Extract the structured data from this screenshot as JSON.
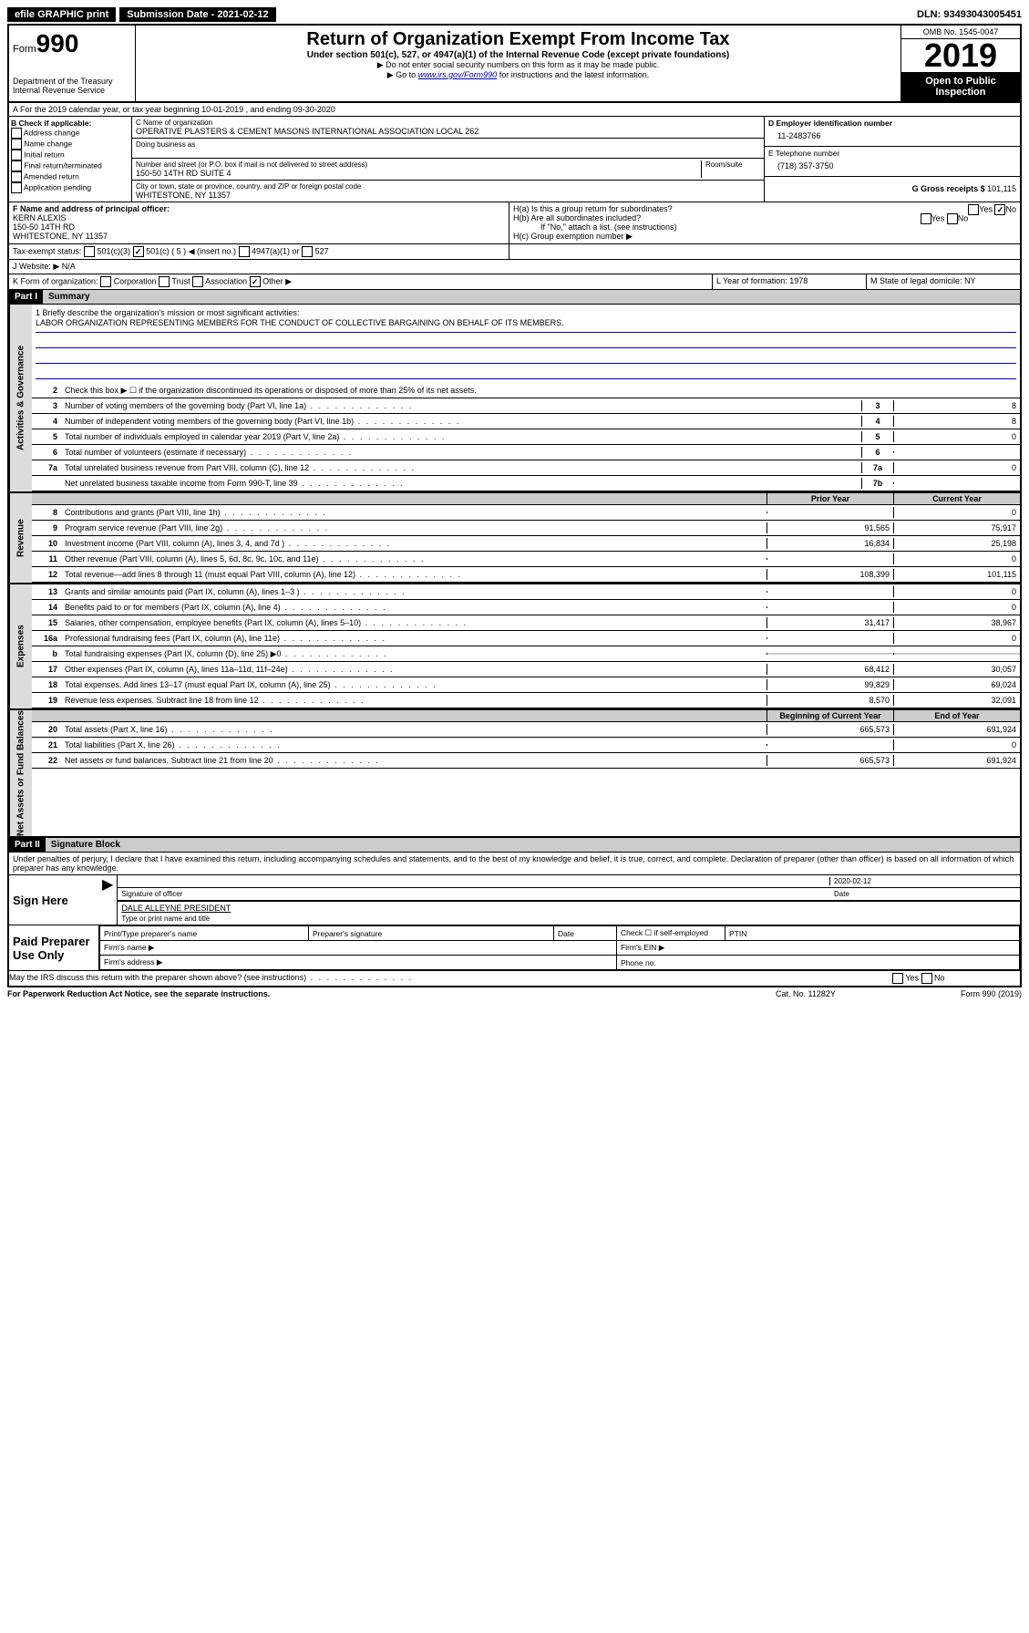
{
  "topbar": {
    "efile": "efile GRAPHIC print",
    "submission": "Submission Date - 2021-02-12",
    "dln": "DLN: 93493043005451"
  },
  "header": {
    "form_label": "Form",
    "form_num": "990",
    "dept": "Department of the Treasury",
    "irs": "Internal Revenue Service",
    "title": "Return of Organization Exempt From Income Tax",
    "subtitle": "Under section 501(c), 527, or 4947(a)(1) of the Internal Revenue Code (except private foundations)",
    "note1": "▶ Do not enter social security numbers on this form as it may be made public.",
    "note2_pre": "▶ Go to ",
    "note2_link": "www.irs.gov/Form990",
    "note2_post": " for instructions and the latest information.",
    "omb": "OMB No. 1545-0047",
    "year": "2019",
    "open": "Open to Public Inspection"
  },
  "row_a": "A For the 2019 calendar year, or tax year beginning 10-01-2019     , and ending 09-30-2020",
  "section_b": {
    "title": "B Check if applicable:",
    "opts": [
      "Address change",
      "Name change",
      "Initial return",
      "Final return/terminated",
      "Amended return",
      "Application pending"
    ]
  },
  "section_c": {
    "name_label": "C Name of organization",
    "name": "OPERATIVE PLASTERS & CEMENT MASONS INTERNATIONAL ASSOCIATION LOCAL 262",
    "dba_label": "Doing business as",
    "addr_label": "Number and street (or P.O. box if mail is not delivered to street address)",
    "room_label": "Room/suite",
    "addr": "150-50 14TH RD SUITE 4",
    "city_label": "City or town, state or province, country, and ZIP or foreign postal code",
    "city": "WHITESTONE, NY  11357"
  },
  "section_d": {
    "ein_label": "D Employer identification number",
    "ein": "11-2483766",
    "phone_label": "E Telephone number",
    "phone": "(718) 357-3750",
    "receipts_label": "G Gross receipts $",
    "receipts": "101,115"
  },
  "section_f": {
    "label": "F  Name and address of principal officer:",
    "name": "KERN ALEXIS",
    "addr1": "150-50 14TH RD",
    "addr2": "WHITESTONE, NY  11357"
  },
  "section_h": {
    "ha": "H(a)  Is this a group return for subordinates?",
    "hb": "H(b)  Are all subordinates included?",
    "hb_note": "If \"No,\" attach a list. (see instructions)",
    "hc": "H(c)  Group exemption number ▶"
  },
  "tax_exempt": {
    "label": "Tax-exempt status:",
    "insert": "◀ (insert no.)"
  },
  "section_j": "J   Website: ▶   N/A",
  "section_k": "K Form of organization:",
  "section_l": {
    "label": "L Year of formation:",
    "val": "1978"
  },
  "section_m": {
    "label": "M State of legal domicile:",
    "val": "NY"
  },
  "part1": {
    "header": "Part I",
    "title": "Summary",
    "line1_label": "1  Briefly describe the organization's mission or most significant activities:",
    "mission": "LABOR ORGANIZATION REPRESENTING MEMBERS FOR THE CONDUCT OF COLLECTIVE BARGAINING ON BEHALF OF ITS MEMBERS.",
    "line2": "Check this box ▶ ☐  if the organization discontinued its operations or disposed of more than 25% of its net assets."
  },
  "vert_labels": {
    "gov": "Activities & Governance",
    "rev": "Revenue",
    "exp": "Expenses",
    "net": "Net Assets or Fund Balances"
  },
  "gov_lines": [
    {
      "n": "3",
      "t": "Number of voting members of the governing body (Part VI, line 1a)",
      "box": "3",
      "v": "8"
    },
    {
      "n": "4",
      "t": "Number of independent voting members of the governing body (Part VI, line 1b)",
      "box": "4",
      "v": "8"
    },
    {
      "n": "5",
      "t": "Total number of individuals employed in calendar year 2019 (Part V, line 2a)",
      "box": "5",
      "v": "0"
    },
    {
      "n": "6",
      "t": "Total number of volunteers (estimate if necessary)",
      "box": "6",
      "v": ""
    },
    {
      "n": "7a",
      "t": "Total unrelated business revenue from Part VIII, column (C), line 12",
      "box": "7a",
      "v": "0"
    },
    {
      "n": "",
      "t": "Net unrelated business taxable income from Form 990-T, line 39",
      "box": "7b",
      "v": ""
    }
  ],
  "two_col_header": {
    "prior": "Prior Year",
    "current": "Current Year"
  },
  "rev_lines": [
    {
      "n": "8",
      "t": "Contributions and grants (Part VIII, line 1h)",
      "p": "",
      "c": "0"
    },
    {
      "n": "9",
      "t": "Program service revenue (Part VIII, line 2g)",
      "p": "91,565",
      "c": "75,917"
    },
    {
      "n": "10",
      "t": "Investment income (Part VIII, column (A), lines 3, 4, and 7d )",
      "p": "16,834",
      "c": "25,198"
    },
    {
      "n": "11",
      "t": "Other revenue (Part VIII, column (A), lines 5, 6d, 8c, 9c, 10c, and 11e)",
      "p": "",
      "c": "0"
    },
    {
      "n": "12",
      "t": "Total revenue—add lines 8 through 11 (must equal Part VIII, column (A), line 12)",
      "p": "108,399",
      "c": "101,115"
    }
  ],
  "exp_lines": [
    {
      "n": "13",
      "t": "Grants and similar amounts paid (Part IX, column (A), lines 1–3 )",
      "p": "",
      "c": "0"
    },
    {
      "n": "14",
      "t": "Benefits paid to or for members (Part IX, column (A), line 4)",
      "p": "",
      "c": "0"
    },
    {
      "n": "15",
      "t": "Salaries, other compensation, employee benefits (Part IX, column (A), lines 5–10)",
      "p": "31,417",
      "c": "38,967"
    },
    {
      "n": "16a",
      "t": "Professional fundraising fees (Part IX, column (A), line 11e)",
      "p": "",
      "c": "0"
    },
    {
      "n": "b",
      "t": "Total fundraising expenses (Part IX, column (D), line 25) ▶0",
      "p": "shade",
      "c": "shade"
    },
    {
      "n": "17",
      "t": "Other expenses (Part IX, column (A), lines 11a–11d, 11f–24e)",
      "p": "68,412",
      "c": "30,057"
    },
    {
      "n": "18",
      "t": "Total expenses. Add lines 13–17 (must equal Part IX, column (A), line 25)",
      "p": "99,829",
      "c": "69,024"
    },
    {
      "n": "19",
      "t": "Revenue less expenses. Subtract line 18 from line 12",
      "p": "8,570",
      "c": "32,091"
    }
  ],
  "net_header": {
    "begin": "Beginning of Current Year",
    "end": "End of Year"
  },
  "net_lines": [
    {
      "n": "20",
      "t": "Total assets (Part X, line 16)",
      "p": "665,573",
      "c": "691,924"
    },
    {
      "n": "21",
      "t": "Total liabilities (Part X, line 26)",
      "p": "",
      "c": "0"
    },
    {
      "n": "22",
      "t": "Net assets or fund balances. Subtract line 21 from line 20",
      "p": "665,573",
      "c": "691,924"
    }
  ],
  "part2": {
    "header": "Part II",
    "title": "Signature Block",
    "perjury": "Under penalties of perjury, I declare that I have examined this return, including accompanying schedules and statements, and to the best of my knowledge and belief, it is true, correct, and complete. Declaration of preparer (other than officer) is based on all information of which preparer has any knowledge."
  },
  "sign": {
    "label": "Sign Here",
    "date": "2020-02-12",
    "sig_label": "Signature of officer",
    "date_label": "Date",
    "name": "DALE ALLEYNE PRESIDENT",
    "name_label": "Type or print name and title"
  },
  "preparer": {
    "label": "Paid Preparer Use Only",
    "h1": "Print/Type preparer's name",
    "h2": "Preparer's signature",
    "h3": "Date",
    "h4": "Check ☐ if self-employed",
    "h5": "PTIN",
    "firm_name": "Firm's name   ▶",
    "firm_ein": "Firm's EIN ▶",
    "firm_addr": "Firm's address ▶",
    "phone": "Phone no."
  },
  "footer": {
    "discuss": "May the IRS discuss this return with the preparer shown above? (see instructions)",
    "paperwork": "For Paperwork Reduction Act Notice, see the separate instructions.",
    "cat": "Cat. No. 11282Y",
    "form": "Form 990 (2019)"
  }
}
